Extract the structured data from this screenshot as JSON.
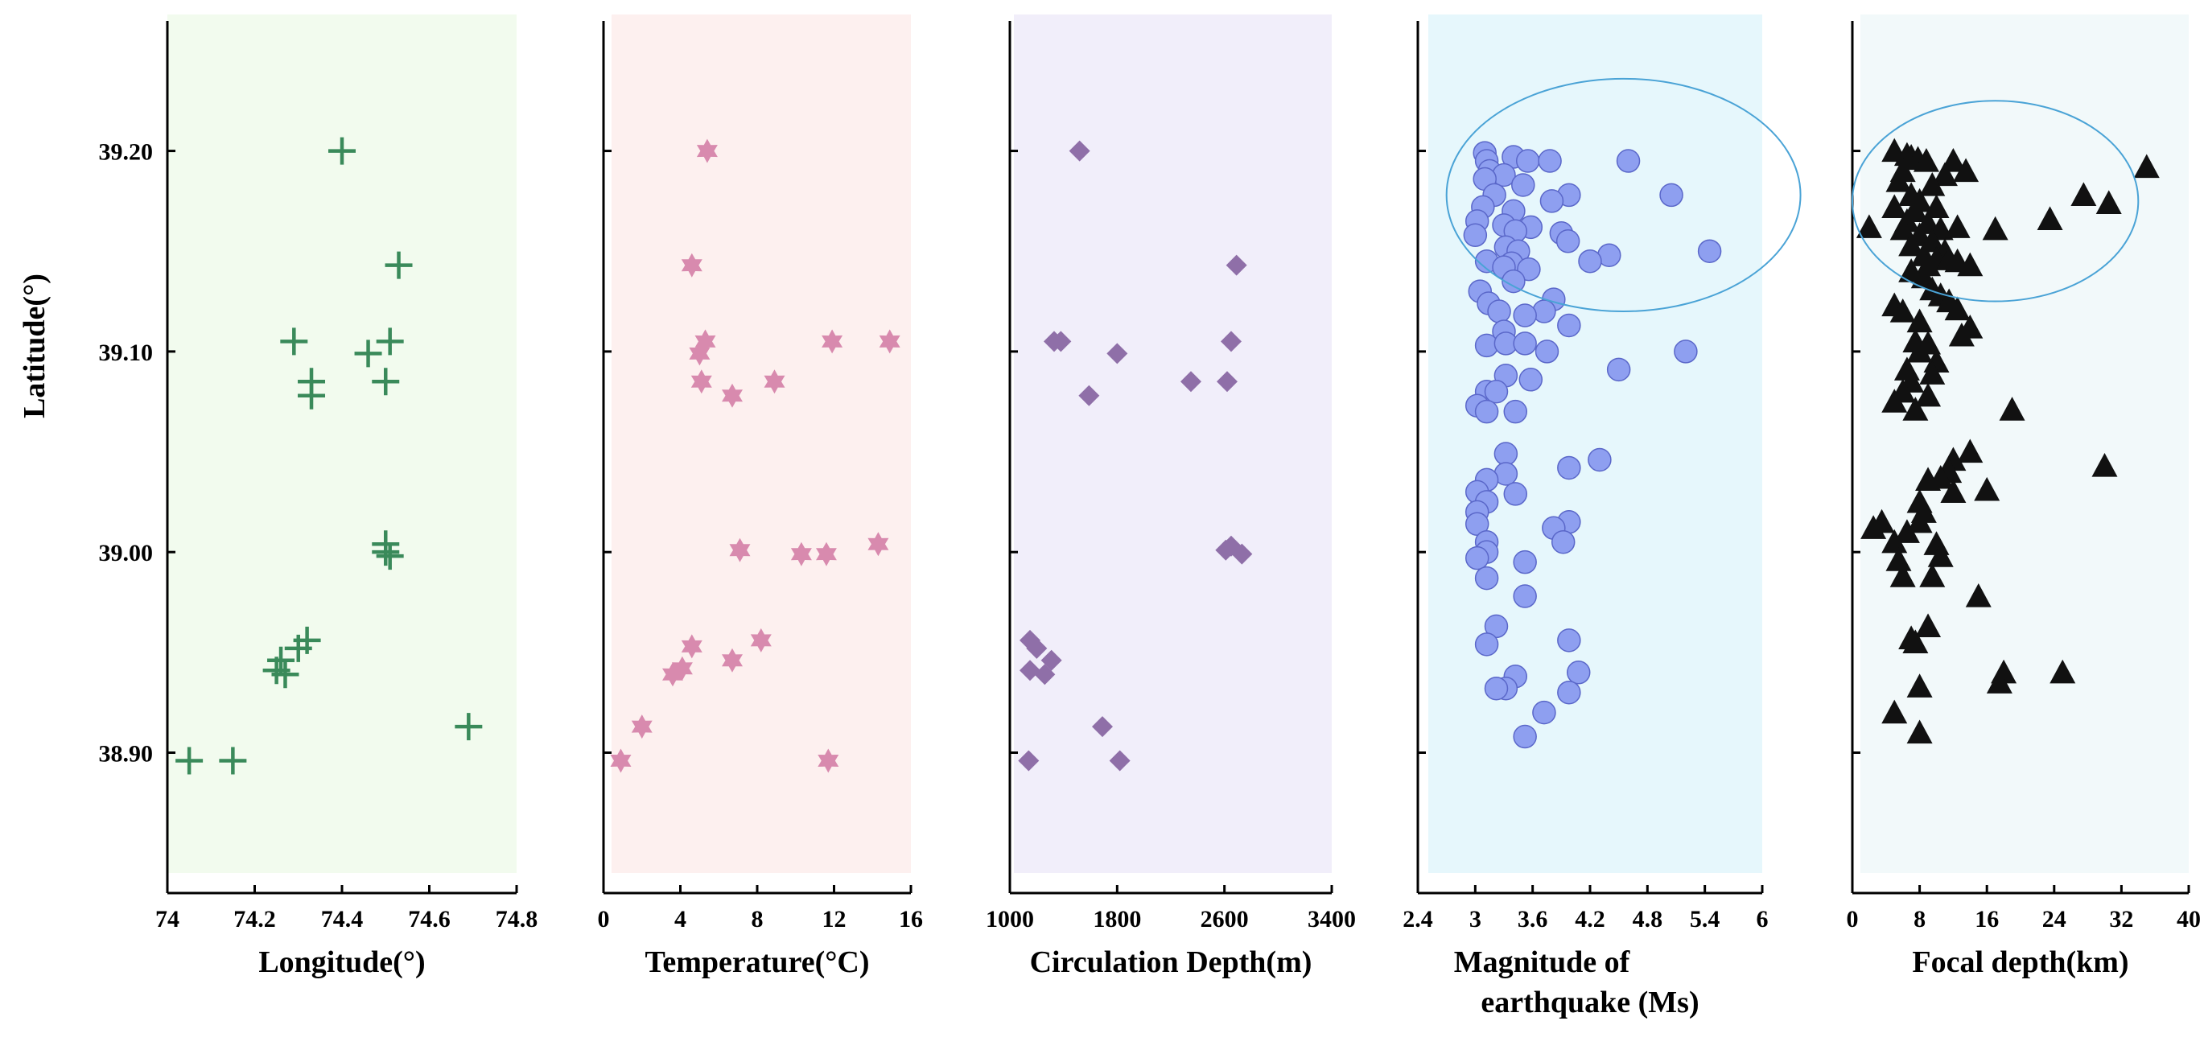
{
  "chart_data": {
    "type": "scatter",
    "ylabel": "Latitude(°)",
    "ylim": [
      38.83,
      39.26
    ],
    "yticks": [
      38.9,
      39.0,
      39.1,
      39.2
    ],
    "ytick_labels": [
      "38.90",
      "39.00",
      "39.10",
      "39.20"
    ],
    "panels": [
      {
        "name": "longitude",
        "xlabel_lines": [
          "Longitude(°)"
        ],
        "xlim": [
          74.0,
          74.8
        ],
        "xticks": [
          74.0,
          74.2,
          74.4,
          74.6,
          74.8
        ],
        "xtick_labels": [
          "74",
          "74.2",
          "74.4",
          "74.6",
          "74.8"
        ],
        "marker": "plus",
        "color": "#3a8a5a",
        "background": "#f2fbee",
        "points": [
          {
            "x": 74.4,
            "y": 39.2
          },
          {
            "x": 74.53,
            "y": 39.143
          },
          {
            "x": 74.29,
            "y": 39.105
          },
          {
            "x": 74.51,
            "y": 39.105
          },
          {
            "x": 74.46,
            "y": 39.099
          },
          {
            "x": 74.33,
            "y": 39.085
          },
          {
            "x": 74.5,
            "y": 39.085
          },
          {
            "x": 74.33,
            "y": 39.078
          },
          {
            "x": 74.5,
            "y": 39.004
          },
          {
            "x": 74.5,
            "y": 39.0
          },
          {
            "x": 74.51,
            "y": 38.998
          },
          {
            "x": 74.32,
            "y": 38.956
          },
          {
            "x": 74.3,
            "y": 38.952
          },
          {
            "x": 74.26,
            "y": 38.946
          },
          {
            "x": 74.25,
            "y": 38.941
          },
          {
            "x": 74.27,
            "y": 38.939
          },
          {
            "x": 74.69,
            "y": 38.913
          },
          {
            "x": 74.05,
            "y": 38.896
          },
          {
            "x": 74.15,
            "y": 38.896
          }
        ]
      },
      {
        "name": "temperature",
        "xlabel_lines": [
          "Temperature(°C)"
        ],
        "xlim": [
          0,
          16
        ],
        "xticks": [
          0,
          4,
          8,
          12,
          16
        ],
        "xtick_labels": [
          "0",
          "4",
          "8",
          "12",
          "16"
        ],
        "marker": "star6",
        "color": "#d88aae",
        "background": "#fdf0ef",
        "points": [
          {
            "x": 5.4,
            "y": 39.2
          },
          {
            "x": 4.6,
            "y": 39.143
          },
          {
            "x": 5.3,
            "y": 39.105
          },
          {
            "x": 11.9,
            "y": 39.105
          },
          {
            "x": 14.9,
            "y": 39.105
          },
          {
            "x": 5.0,
            "y": 39.099
          },
          {
            "x": 5.1,
            "y": 39.085
          },
          {
            "x": 8.9,
            "y": 39.085
          },
          {
            "x": 6.7,
            "y": 39.078
          },
          {
            "x": 14.3,
            "y": 39.004
          },
          {
            "x": 7.1,
            "y": 39.001
          },
          {
            "x": 10.3,
            "y": 38.999
          },
          {
            "x": 11.6,
            "y": 38.999
          },
          {
            "x": 8.2,
            "y": 38.956
          },
          {
            "x": 4.6,
            "y": 38.953
          },
          {
            "x": 6.7,
            "y": 38.946
          },
          {
            "x": 4.1,
            "y": 38.942
          },
          {
            "x": 3.6,
            "y": 38.939
          },
          {
            "x": 2.0,
            "y": 38.913
          },
          {
            "x": 0.9,
            "y": 38.896
          },
          {
            "x": 11.7,
            "y": 38.896
          }
        ]
      },
      {
        "name": "circulation",
        "xlabel_lines": [
          "Circulation Depth(m)"
        ],
        "xlim": [
          1000,
          3400
        ],
        "xticks": [
          1000,
          1800,
          2600,
          3400
        ],
        "xtick_labels": [
          "1000",
          "1800",
          "2600",
          "3400"
        ],
        "marker": "diamond",
        "color": "#8f6fa8",
        "background": "#f1eefa",
        "points": [
          {
            "x": 1520,
            "y": 39.2
          },
          {
            "x": 2690,
            "y": 39.143
          },
          {
            "x": 1330,
            "y": 39.105
          },
          {
            "x": 1380,
            "y": 39.105
          },
          {
            "x": 2650,
            "y": 39.105
          },
          {
            "x": 1800,
            "y": 39.099
          },
          {
            "x": 2350,
            "y": 39.085
          },
          {
            "x": 2620,
            "y": 39.085
          },
          {
            "x": 1590,
            "y": 39.078
          },
          {
            "x": 2650,
            "y": 39.003
          },
          {
            "x": 2610,
            "y": 39.001
          },
          {
            "x": 2730,
            "y": 38.999
          },
          {
            "x": 1150,
            "y": 38.956
          },
          {
            "x": 1200,
            "y": 38.952
          },
          {
            "x": 1310,
            "y": 38.946
          },
          {
            "x": 1150,
            "y": 38.941
          },
          {
            "x": 1260,
            "y": 38.939
          },
          {
            "x": 1690,
            "y": 38.913
          },
          {
            "x": 1140,
            "y": 38.896
          },
          {
            "x": 1820,
            "y": 38.896
          }
        ]
      },
      {
        "name": "magnitude",
        "xlabel_lines": [
          "Magnitude of",
          "earthquake (Ms)"
        ],
        "xlim": [
          2.4,
          6.0
        ],
        "xticks": [
          2.4,
          3.0,
          3.6,
          4.2,
          4.8,
          5.4,
          6.0
        ],
        "xtick_labels": [
          "2.4",
          "3",
          "3.6",
          "4.2",
          "4.8",
          "5.4",
          "6"
        ],
        "marker": "circle",
        "color": "#8e9ff0",
        "background": "#e6f7fc",
        "ellipse": {
          "cx": 4.55,
          "cy": 39.178,
          "rx": 1.85,
          "ry": 0.058
        },
        "points": [
          {
            "x": 3.1,
            "y": 39.199
          },
          {
            "x": 3.12,
            "y": 39.195
          },
          {
            "x": 3.4,
            "y": 39.197
          },
          {
            "x": 3.55,
            "y": 39.195
          },
          {
            "x": 3.78,
            "y": 39.195
          },
          {
            "x": 4.6,
            "y": 39.195
          },
          {
            "x": 3.15,
            "y": 39.19
          },
          {
            "x": 3.3,
            "y": 39.188
          },
          {
            "x": 3.1,
            "y": 39.186
          },
          {
            "x": 3.5,
            "y": 39.183
          },
          {
            "x": 3.2,
            "y": 39.178
          },
          {
            "x": 3.98,
            "y": 39.178
          },
          {
            "x": 5.05,
            "y": 39.178
          },
          {
            "x": 3.08,
            "y": 39.172
          },
          {
            "x": 3.8,
            "y": 39.175
          },
          {
            "x": 3.4,
            "y": 39.17
          },
          {
            "x": 3.02,
            "y": 39.165
          },
          {
            "x": 3.3,
            "y": 39.163
          },
          {
            "x": 3.58,
            "y": 39.162
          },
          {
            "x": 3.42,
            "y": 39.16
          },
          {
            "x": 3.9,
            "y": 39.159
          },
          {
            "x": 3.0,
            "y": 39.158
          },
          {
            "x": 3.97,
            "y": 39.155
          },
          {
            "x": 3.32,
            "y": 39.152
          },
          {
            "x": 3.45,
            "y": 39.15
          },
          {
            "x": 5.45,
            "y": 39.15
          },
          {
            "x": 4.4,
            "y": 39.148
          },
          {
            "x": 3.12,
            "y": 39.145
          },
          {
            "x": 3.38,
            "y": 39.144
          },
          {
            "x": 4.2,
            "y": 39.145
          },
          {
            "x": 3.3,
            "y": 39.142
          },
          {
            "x": 3.56,
            "y": 39.141
          },
          {
            "x": 3.4,
            "y": 39.135
          },
          {
            "x": 3.05,
            "y": 39.13
          },
          {
            "x": 3.82,
            "y": 39.126
          },
          {
            "x": 3.14,
            "y": 39.124
          },
          {
            "x": 3.25,
            "y": 39.12
          },
          {
            "x": 3.72,
            "y": 39.12
          },
          {
            "x": 3.52,
            "y": 39.118
          },
          {
            "x": 3.98,
            "y": 39.113
          },
          {
            "x": 3.3,
            "y": 39.11
          },
          {
            "x": 3.12,
            "y": 39.103
          },
          {
            "x": 3.32,
            "y": 39.104
          },
          {
            "x": 3.52,
            "y": 39.104
          },
          {
            "x": 3.75,
            "y": 39.1
          },
          {
            "x": 5.2,
            "y": 39.1
          },
          {
            "x": 4.5,
            "y": 39.091
          },
          {
            "x": 3.32,
            "y": 39.088
          },
          {
            "x": 3.58,
            "y": 39.086
          },
          {
            "x": 3.12,
            "y": 39.08
          },
          {
            "x": 3.22,
            "y": 39.08
          },
          {
            "x": 3.02,
            "y": 39.073
          },
          {
            "x": 3.12,
            "y": 39.07
          },
          {
            "x": 3.42,
            "y": 39.07
          },
          {
            "x": 3.32,
            "y": 39.049
          },
          {
            "x": 4.3,
            "y": 39.046
          },
          {
            "x": 3.98,
            "y": 39.042
          },
          {
            "x": 3.32,
            "y": 39.039
          },
          {
            "x": 3.12,
            "y": 39.036
          },
          {
            "x": 3.02,
            "y": 39.03
          },
          {
            "x": 3.42,
            "y": 39.029
          },
          {
            "x": 3.12,
            "y": 39.025
          },
          {
            "x": 3.02,
            "y": 39.02
          },
          {
            "x": 3.02,
            "y": 39.014
          },
          {
            "x": 3.98,
            "y": 39.015
          },
          {
            "x": 3.82,
            "y": 39.012
          },
          {
            "x": 3.92,
            "y": 39.005
          },
          {
            "x": 3.12,
            "y": 39.005
          },
          {
            "x": 3.12,
            "y": 39.0
          },
          {
            "x": 3.02,
            "y": 38.997
          },
          {
            "x": 3.52,
            "y": 38.995
          },
          {
            "x": 3.12,
            "y": 38.987
          },
          {
            "x": 3.52,
            "y": 38.978
          },
          {
            "x": 3.22,
            "y": 38.963
          },
          {
            "x": 3.98,
            "y": 38.956
          },
          {
            "x": 3.12,
            "y": 38.954
          },
          {
            "x": 4.08,
            "y": 38.94
          },
          {
            "x": 3.42,
            "y": 38.938
          },
          {
            "x": 3.32,
            "y": 38.932
          },
          {
            "x": 3.22,
            "y": 38.932
          },
          {
            "x": 3.98,
            "y": 38.93
          },
          {
            "x": 3.72,
            "y": 38.92
          },
          {
            "x": 3.52,
            "y": 38.908
          }
        ]
      },
      {
        "name": "focal",
        "xlabel_lines": [
          "Focal depth(km)"
        ],
        "xlim": [
          0,
          40
        ],
        "xticks": [
          0,
          8,
          16,
          24,
          32,
          40
        ],
        "xtick_labels": [
          "0",
          "8",
          "16",
          "24",
          "32",
          "40"
        ],
        "marker": "triangle",
        "color": "#111111",
        "background": "#f2f9fa",
        "ellipse": {
          "cx": 17.0,
          "cy": 39.175,
          "rx": 17.0,
          "ry": 0.05
        },
        "points": [
          {
            "x": 5.0,
            "y": 39.2
          },
          {
            "x": 6.5,
            "y": 39.198
          },
          {
            "x": 7.0,
            "y": 39.197
          },
          {
            "x": 7.8,
            "y": 39.196
          },
          {
            "x": 8.8,
            "y": 39.195
          },
          {
            "x": 12.0,
            "y": 39.195
          },
          {
            "x": 35.0,
            "y": 39.192
          },
          {
            "x": 6.0,
            "y": 39.19
          },
          {
            "x": 11.0,
            "y": 39.188
          },
          {
            "x": 13.5,
            "y": 39.19
          },
          {
            "x": 5.5,
            "y": 39.185
          },
          {
            "x": 9.5,
            "y": 39.183
          },
          {
            "x": 27.5,
            "y": 39.178
          },
          {
            "x": 7.0,
            "y": 39.178
          },
          {
            "x": 8.0,
            "y": 39.175
          },
          {
            "x": 30.5,
            "y": 39.174
          },
          {
            "x": 5.0,
            "y": 39.172
          },
          {
            "x": 10.0,
            "y": 39.172
          },
          {
            "x": 7.5,
            "y": 39.17
          },
          {
            "x": 23.5,
            "y": 39.166
          },
          {
            "x": 6.5,
            "y": 39.165
          },
          {
            "x": 9.0,
            "y": 39.164
          },
          {
            "x": 2.0,
            "y": 39.162
          },
          {
            "x": 6.0,
            "y": 39.161
          },
          {
            "x": 10.5,
            "y": 39.161
          },
          {
            "x": 12.5,
            "y": 39.162
          },
          {
            "x": 17.0,
            "y": 39.161
          },
          {
            "x": 8.0,
            "y": 39.158
          },
          {
            "x": 9.5,
            "y": 39.155
          },
          {
            "x": 7.0,
            "y": 39.153
          },
          {
            "x": 11.0,
            "y": 39.15
          },
          {
            "x": 8.5,
            "y": 39.148
          },
          {
            "x": 10.0,
            "y": 39.146
          },
          {
            "x": 11.5,
            "y": 39.146
          },
          {
            "x": 12.5,
            "y": 39.145
          },
          {
            "x": 14.0,
            "y": 39.143
          },
          {
            "x": 9.0,
            "y": 39.143
          },
          {
            "x": 7.0,
            "y": 39.14
          },
          {
            "x": 8.5,
            "y": 39.137
          },
          {
            "x": 9.5,
            "y": 39.131
          },
          {
            "x": 10.5,
            "y": 39.128
          },
          {
            "x": 11.5,
            "y": 39.125
          },
          {
            "x": 5.0,
            "y": 39.123
          },
          {
            "x": 6.0,
            "y": 39.12
          },
          {
            "x": 12.5,
            "y": 39.121
          },
          {
            "x": 8.0,
            "y": 39.115
          },
          {
            "x": 14.0,
            "y": 39.112
          },
          {
            "x": 13.0,
            "y": 39.108
          },
          {
            "x": 7.5,
            "y": 39.105
          },
          {
            "x": 9.0,
            "y": 39.104
          },
          {
            "x": 8.0,
            "y": 39.1
          },
          {
            "x": 10.0,
            "y": 39.095
          },
          {
            "x": 6.5,
            "y": 39.091
          },
          {
            "x": 9.5,
            "y": 39.089
          },
          {
            "x": 7.0,
            "y": 39.085
          },
          {
            "x": 6.0,
            "y": 39.08
          },
          {
            "x": 9.0,
            "y": 39.078
          },
          {
            "x": 5.0,
            "y": 39.075
          },
          {
            "x": 7.5,
            "y": 39.071
          },
          {
            "x": 19.0,
            "y": 39.071
          },
          {
            "x": 14.0,
            "y": 39.05
          },
          {
            "x": 12.0,
            "y": 39.046
          },
          {
            "x": 30.0,
            "y": 39.043
          },
          {
            "x": 11.5,
            "y": 39.04
          },
          {
            "x": 10.5,
            "y": 39.037
          },
          {
            "x": 9.0,
            "y": 39.036
          },
          {
            "x": 12.0,
            "y": 39.03
          },
          {
            "x": 16.0,
            "y": 39.031
          },
          {
            "x": 8.0,
            "y": 39.025
          },
          {
            "x": 8.5,
            "y": 39.02
          },
          {
            "x": 8.0,
            "y": 39.015
          },
          {
            "x": 3.5,
            "y": 39.015
          },
          {
            "x": 2.5,
            "y": 39.012
          },
          {
            "x": 6.5,
            "y": 39.01
          },
          {
            "x": 5.0,
            "y": 39.005
          },
          {
            "x": 10.0,
            "y": 39.004
          },
          {
            "x": 10.5,
            "y": 38.998
          },
          {
            "x": 5.5,
            "y": 38.996
          },
          {
            "x": 6.0,
            "y": 38.988
          },
          {
            "x": 9.5,
            "y": 38.988
          },
          {
            "x": 15.0,
            "y": 38.978
          },
          {
            "x": 9.0,
            "y": 38.963
          },
          {
            "x": 7.0,
            "y": 38.957
          },
          {
            "x": 7.5,
            "y": 38.955
          },
          {
            "x": 25.0,
            "y": 38.94
          },
          {
            "x": 18.0,
            "y": 38.94
          },
          {
            "x": 17.5,
            "y": 38.935
          },
          {
            "x": 8.0,
            "y": 38.933
          },
          {
            "x": 5.0,
            "y": 38.92
          },
          {
            "x": 8.0,
            "y": 38.91
          }
        ]
      }
    ]
  }
}
